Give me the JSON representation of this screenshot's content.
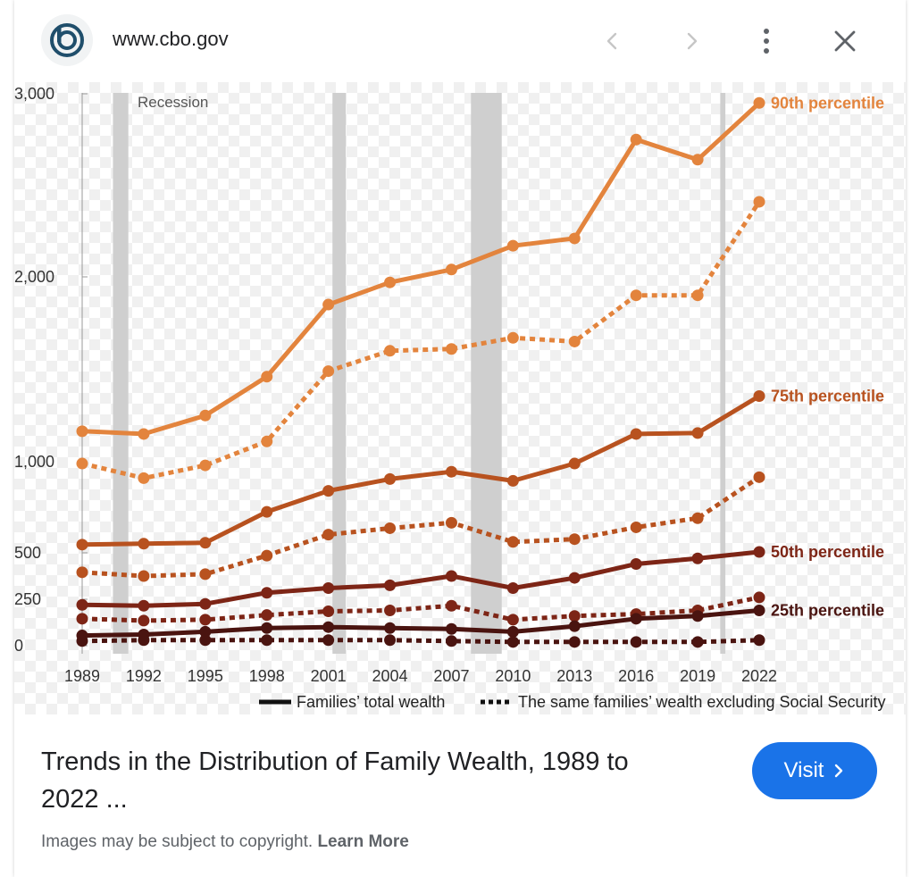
{
  "header": {
    "site_url": "www.cbo.gov",
    "logo_icon": "cbo-logo-icon",
    "prev_icon": "chevron-left-icon",
    "next_icon": "chevron-right-icon",
    "more_icon": "more-vert-icon",
    "close_icon": "close-icon"
  },
  "result": {
    "title_line1": "Trends in the Distribution of Family Wealth, 1989 to",
    "title_line2": "2022 ...",
    "visit_label": "Visit",
    "copyright_text": "Images may be subject to copyright.",
    "learn_more_label": "Learn More"
  },
  "colors": {
    "p90": "#e3843d",
    "p75": "#b8521f",
    "p50": "#7d2516",
    "p25": "#4a1410",
    "visit_button": "#1a73e8",
    "recession_band": "#cfcfcf"
  },
  "chart_data": {
    "type": "line",
    "title": "",
    "recession_label": "Recession",
    "recessions": [
      [
        1990.5,
        1991.25
      ],
      [
        2001.2,
        2001.85
      ],
      [
        2007.95,
        2009.45
      ],
      [
        2020.1,
        2020.35
      ]
    ],
    "x": [
      1989,
      1992,
      1995,
      1998,
      2001,
      2004,
      2007,
      2010,
      2013,
      2016,
      2019,
      2022
    ],
    "x_tick_labels": [
      "1989",
      "1992",
      "1995",
      "1998",
      "2001",
      "2004",
      "2007",
      "2010",
      "2013",
      "2016",
      "2019",
      "2022"
    ],
    "y_ticks": [
      0,
      250,
      500,
      1000,
      2000,
      3000
    ],
    "y_tick_labels": [
      "0",
      "250",
      "500",
      "1,000",
      "2,000",
      "3,000"
    ],
    "ylim": [
      0,
      3000
    ],
    "series": [
      {
        "name": "90th percentile",
        "group": "p90",
        "style": "solid",
        "values": [
          1165,
          1150,
          1250,
          1460,
          1850,
          1970,
          2040,
          2170,
          2210,
          2750,
          2640,
          2950
        ]
      },
      {
        "name": "",
        "group": "p90",
        "style": "dotted",
        "values": [
          990,
          910,
          980,
          1110,
          1490,
          1600,
          1610,
          1670,
          1650,
          1900,
          1900,
          2410
        ]
      },
      {
        "name": "75th percentile",
        "group": "p75",
        "style": "solid",
        "values": [
          545,
          550,
          555,
          725,
          840,
          905,
          945,
          895,
          990,
          1150,
          1155,
          1355
        ]
      },
      {
        "name": "",
        "group": "p75",
        "style": "dotted",
        "values": [
          395,
          375,
          385,
          485,
          600,
          635,
          665,
          560,
          575,
          640,
          690,
          915
        ]
      },
      {
        "name": "50th percentile",
        "group": "p50",
        "style": "solid",
        "values": [
          220,
          215,
          225,
          285,
          310,
          325,
          375,
          310,
          365,
          440,
          470,
          505
        ]
      },
      {
        "name": "",
        "group": "p50",
        "style": "dotted",
        "values": [
          145,
          135,
          140,
          165,
          185,
          190,
          215,
          140,
          160,
          170,
          190,
          260
        ]
      },
      {
        "name": "25th percentile",
        "group": "p25",
        "style": "solid",
        "values": [
          55,
          60,
          75,
          95,
          100,
          95,
          90,
          75,
          105,
          145,
          160,
          190
        ]
      },
      {
        "name": "",
        "group": "p25",
        "style": "dotted",
        "values": [
          25,
          30,
          30,
          30,
          30,
          30,
          25,
          20,
          20,
          20,
          20,
          30
        ]
      }
    ],
    "legend": {
      "placement": "bottom-right",
      "solid_label": "Families’ total wealth",
      "dotted_label": "The same families’ wealth excluding Social Security"
    }
  }
}
